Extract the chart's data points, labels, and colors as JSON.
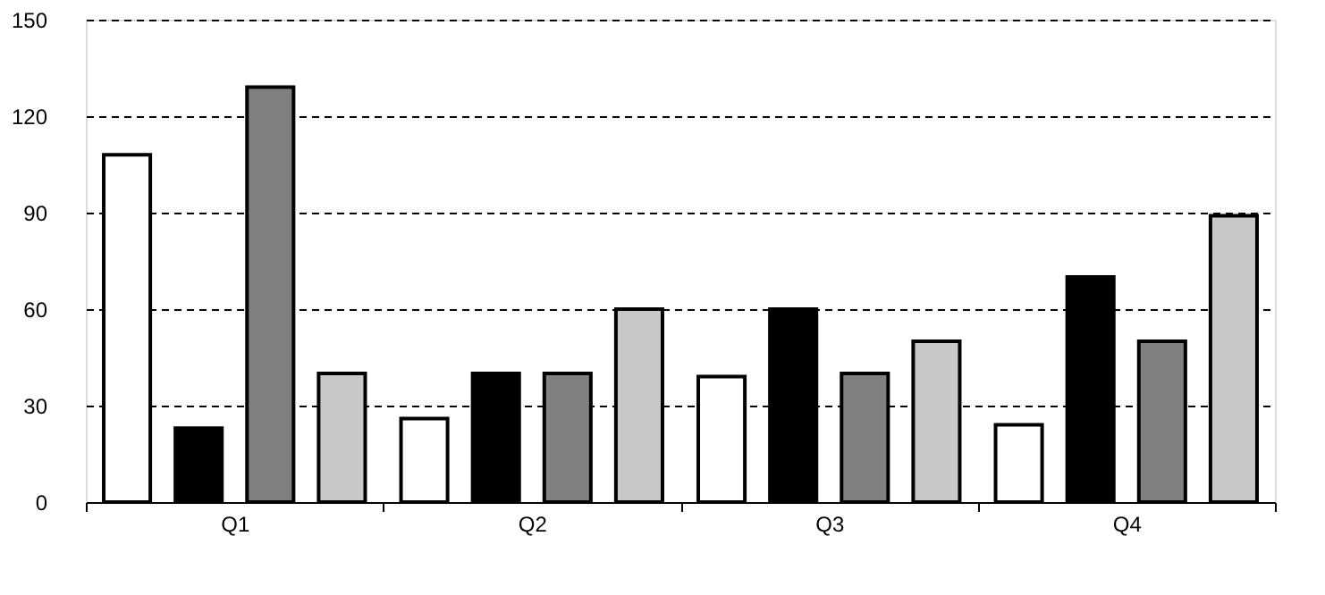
{
  "chart_data": {
    "type": "bar",
    "categories": [
      "Q1",
      "Q2",
      "Q3",
      "Q4"
    ],
    "series": [
      {
        "color": "#ffffff",
        "values": [
          108,
          26,
          39,
          24
        ]
      },
      {
        "color": "#000000",
        "values": [
          23,
          40,
          60,
          70
        ]
      },
      {
        "color": "#808080",
        "values": [
          129,
          40,
          40,
          50
        ]
      },
      {
        "color": "#c8c8c8",
        "values": [
          40,
          60,
          50,
          89
        ]
      }
    ],
    "ylim": [
      0,
      150
    ],
    "yticks": [
      0,
      30,
      60,
      90,
      120,
      150
    ],
    "grid": "y",
    "legend": false
  }
}
